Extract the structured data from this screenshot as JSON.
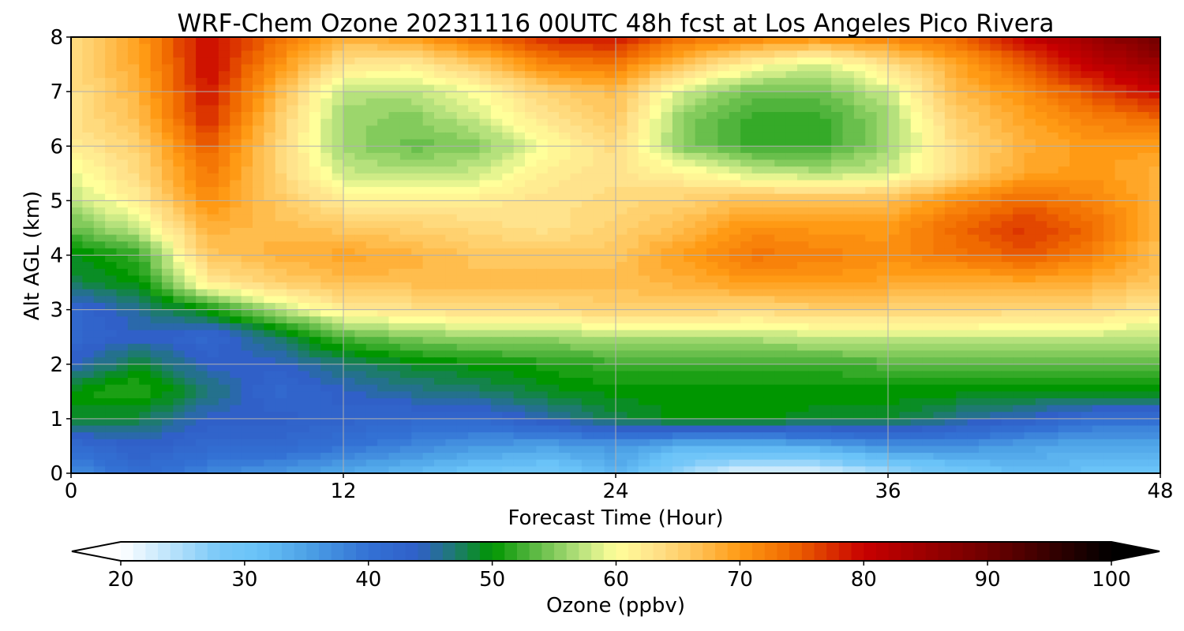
{
  "chart_data": {
    "type": "heatmap",
    "title": "WRF-Chem Ozone  20231116 00UTC 48h fcst at Los Angeles Pico Rivera",
    "xlabel": "Forecast Time (Hour)",
    "ylabel": "Alt AGL (km)",
    "xlim": [
      0,
      48
    ],
    "ylim": [
      0,
      8
    ],
    "xticks": [
      "0",
      "12",
      "24",
      "36",
      "48"
    ],
    "xtick_values": [
      0,
      12,
      24,
      36,
      48
    ],
    "yticks": [
      "0",
      "1",
      "2",
      "3",
      "4",
      "5",
      "6",
      "7",
      "8"
    ],
    "ytick_values": [
      0,
      1,
      2,
      3,
      4,
      5,
      6,
      7,
      8
    ],
    "grid": true,
    "x": [
      0,
      3,
      6,
      9,
      12,
      15,
      18,
      21,
      24,
      27,
      30,
      33,
      36,
      39,
      42,
      45,
      48
    ],
    "y": [
      0,
      0.5,
      1,
      1.5,
      2,
      2.5,
      3,
      3.5,
      4,
      4.5,
      5,
      5.5,
      6,
      6.5,
      7,
      7.5,
      8
    ],
    "z": [
      [
        37,
        41,
        38,
        36,
        34,
        32,
        30,
        29,
        33,
        25,
        21,
        22,
        25,
        29,
        32,
        31,
        30
      ],
      [
        41,
        44,
        42,
        42,
        40,
        38,
        36,
        35,
        36,
        33,
        33,
        34,
        37,
        37,
        35,
        34,
        34
      ],
      [
        49,
        48,
        44,
        44,
        43,
        42,
        42,
        45,
        48,
        50,
        50,
        49,
        49,
        46,
        44,
        41,
        41
      ],
      [
        50,
        52,
        47,
        42,
        44,
        46,
        47,
        49,
        50,
        50,
        50,
        50,
        50,
        50,
        50,
        50,
        50
      ],
      [
        44,
        49,
        44,
        44,
        47,
        49,
        50,
        51,
        52,
        52,
        52,
        52,
        53,
        53,
        53,
        53,
        53
      ],
      [
        42,
        44,
        42,
        47,
        53,
        55,
        56,
        56,
        57,
        57,
        57,
        58,
        58,
        58,
        58,
        58,
        57
      ],
      [
        42,
        46,
        50,
        57,
        62,
        63,
        64,
        64,
        65,
        65,
        64,
        65,
        65,
        65,
        64,
        64,
        62
      ],
      [
        48,
        50,
        62,
        65,
        67,
        67,
        67,
        67,
        67,
        68,
        70,
        70,
        69,
        68,
        69,
        68,
        66
      ],
      [
        49,
        52,
        66,
        68,
        69,
        68,
        66,
        66,
        66,
        70,
        73,
        72,
        71,
        73,
        75,
        72,
        67
      ],
      [
        54,
        58,
        68,
        67,
        66,
        65,
        64,
        63,
        65,
        67,
        71,
        70,
        70,
        74,
        77,
        74,
        67
      ],
      [
        57,
        62,
        71,
        66,
        62,
        62,
        62,
        63,
        64,
        65,
        67,
        67,
        67,
        71,
        74,
        72,
        68
      ],
      [
        59,
        64,
        73,
        65,
        58,
        57,
        58,
        62,
        63,
        61,
        58,
        57,
        58,
        64,
        69,
        70,
        68
      ],
      [
        62,
        65,
        75,
        65,
        56,
        54,
        55,
        60,
        64,
        55,
        52,
        52,
        56,
        64,
        68,
        70,
        70
      ],
      [
        63,
        67,
        78,
        66,
        56,
        55,
        58,
        63,
        66,
        55,
        52,
        52,
        56,
        65,
        69,
        72,
        74
      ],
      [
        63,
        68,
        79,
        68,
        57,
        57,
        60,
        65,
        67,
        58,
        54,
        54,
        58,
        67,
        71,
        76,
        80
      ],
      [
        64,
        69,
        80,
        71,
        63,
        62,
        66,
        72,
        73,
        66,
        61,
        58,
        63,
        69,
        75,
        81,
        85
      ],
      [
        64,
        70,
        80,
        74,
        68,
        70,
        74,
        78,
        79,
        74,
        72,
        71,
        72,
        74,
        80,
        85,
        90
      ]
    ],
    "colorbar": {
      "label": "Ozone  (ppbv)",
      "vmin": 20,
      "vmax": 100,
      "ticks": [
        "20",
        "30",
        "40",
        "50",
        "60",
        "70",
        "80",
        "90",
        "100"
      ],
      "tick_values": [
        20,
        30,
        40,
        50,
        60,
        70,
        80,
        90,
        100
      ],
      "extend": "both",
      "colors": [
        {
          "v": 20,
          "c": "#ffffff"
        },
        {
          "v": 28,
          "c": "#78c8f8"
        },
        {
          "v": 31,
          "c": "#6ac3f8"
        },
        {
          "v": 35,
          "c": "#4da2e6"
        },
        {
          "v": 40,
          "c": "#3371d4"
        },
        {
          "v": 44,
          "c": "#3060c8"
        },
        {
          "v": 47,
          "c": "#1e7a70"
        },
        {
          "v": 50,
          "c": "#009600"
        },
        {
          "v": 53,
          "c": "#50b43c"
        },
        {
          "v": 57,
          "c": "#b5e17c"
        },
        {
          "v": 60,
          "c": "#ffff9a"
        },
        {
          "v": 63,
          "c": "#ffe38c"
        },
        {
          "v": 66,
          "c": "#ffc860"
        },
        {
          "v": 70,
          "c": "#ff9a14"
        },
        {
          "v": 74,
          "c": "#f06a00"
        },
        {
          "v": 80,
          "c": "#c80000"
        },
        {
          "v": 90,
          "c": "#6e0000"
        },
        {
          "v": 100,
          "c": "#000000"
        }
      ]
    }
  }
}
